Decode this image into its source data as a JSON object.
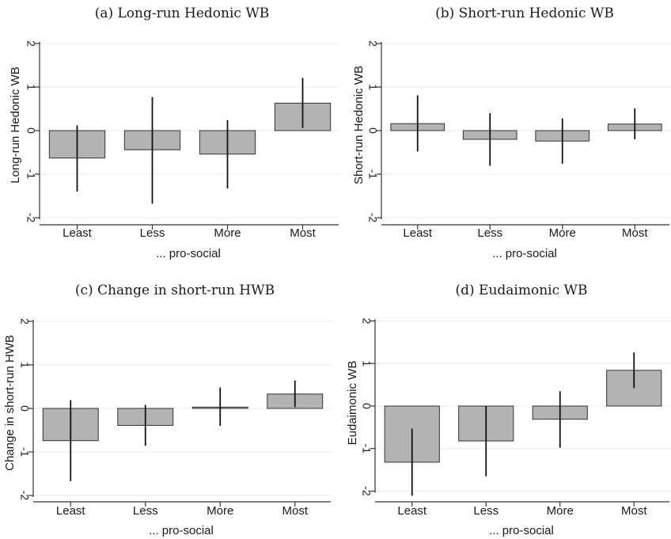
{
  "chart_data": [
    {
      "type": "bar",
      "title": "(a) Long-run Hedonic WB",
      "ylabel": "Long-run Hedonic WB",
      "xlabel": "... pro-social",
      "categories": [
        "Least",
        "Less",
        "More",
        "Most"
      ],
      "values": [
        -0.63,
        -0.44,
        -0.54,
        0.63
      ],
      "ci_low": [
        -1.4,
        -1.68,
        -1.33,
        0.06
      ],
      "ci_high": [
        0.12,
        0.77,
        0.24,
        1.21
      ],
      "ylim": [
        -2,
        2
      ],
      "yticks": [
        -2,
        -1,
        0,
        1,
        2
      ],
      "grid": true,
      "legend": "none"
    },
    {
      "type": "bar",
      "title": "(b) Short-run Hedonic WB",
      "ylabel": "Short-run Hedonic WB",
      "xlabel": "... pro-social",
      "categories": [
        "Least",
        "Less",
        "More",
        "Most"
      ],
      "values": [
        0.16,
        -0.2,
        -0.24,
        0.15
      ],
      "ci_low": [
        -0.48,
        -0.81,
        -0.76,
        -0.2
      ],
      "ci_high": [
        0.81,
        0.4,
        0.28,
        0.51
      ],
      "ylim": [
        -2,
        2
      ],
      "yticks": [
        -2,
        -1,
        0,
        1,
        2
      ],
      "grid": true,
      "legend": "none"
    },
    {
      "type": "bar",
      "title": "(c) Change in short-run HWB",
      "ylabel": "Change in short-run HWB",
      "xlabel": "... pro-social",
      "categories": [
        "Least",
        "Less",
        "More",
        "Most"
      ],
      "values": [
        -0.74,
        -0.39,
        0.03,
        0.33
      ],
      "ci_low": [
        -1.67,
        -0.86,
        -0.4,
        0.03
      ],
      "ci_high": [
        0.19,
        0.08,
        0.48,
        0.64
      ],
      "ylim": [
        -2,
        2
      ],
      "yticks": [
        -2,
        -1,
        0,
        1,
        2
      ],
      "grid": true,
      "legend": "none"
    },
    {
      "type": "bar",
      "title": "(d) Eudaimonic WB",
      "ylabel": "Eudaimonic WB",
      "xlabel": "... pro-social",
      "categories": [
        "Least",
        "Less",
        "More",
        "Most"
      ],
      "values": [
        -1.32,
        -0.82,
        -0.31,
        0.84
      ],
      "ci_low": [
        -2.11,
        -1.65,
        -0.98,
        0.42
      ],
      "ci_high": [
        -0.53,
        0.0,
        0.35,
        1.26
      ],
      "ylim": [
        -2,
        2
      ],
      "yticks": [
        -2,
        -1,
        0,
        1,
        2
      ],
      "grid": true,
      "legend": "none"
    }
  ],
  "colors": {
    "bar_fill": "#b3b3b3",
    "bar_stroke": "#333333",
    "whisker": "#111111",
    "axis": "#333333",
    "grid": "#ebebeb"
  }
}
